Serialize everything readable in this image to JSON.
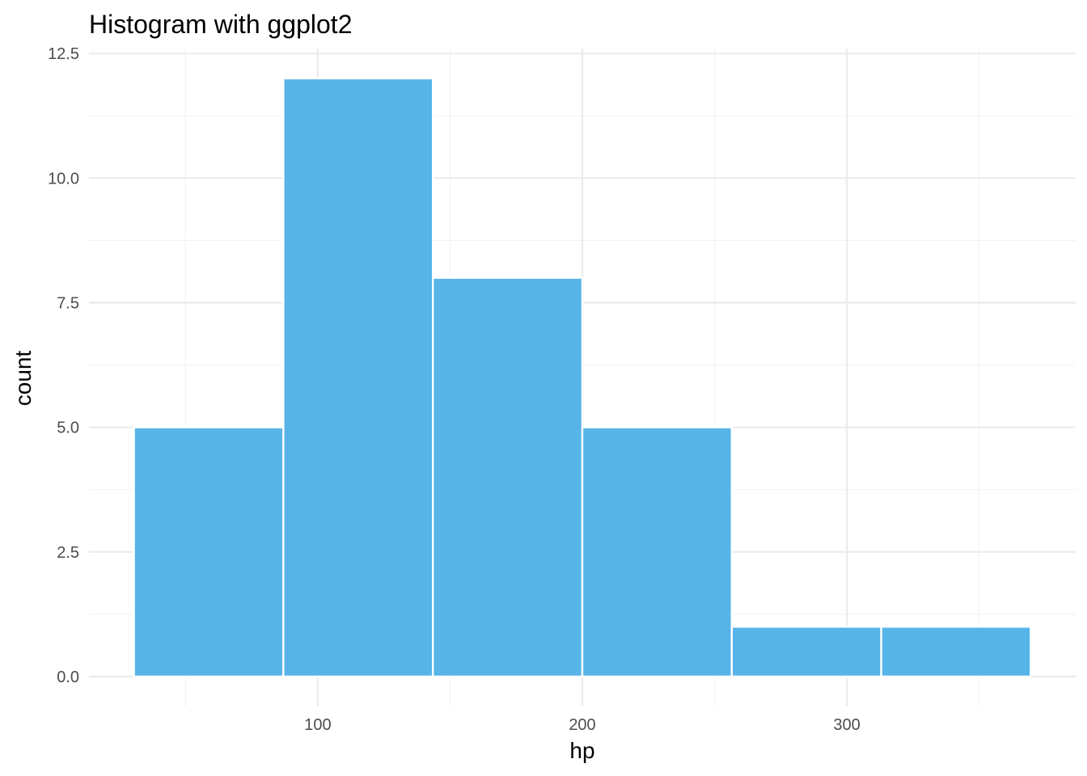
{
  "chart_data": {
    "type": "bar",
    "title": "Histogram with ggplot2",
    "xlabel": "hp",
    "ylabel": "count",
    "bins": [
      {
        "x0": 30.5,
        "x1": 87.0,
        "count": 5
      },
      {
        "x0": 87.0,
        "x1": 143.5,
        "count": 12
      },
      {
        "x0": 143.5,
        "x1": 200.0,
        "count": 8
      },
      {
        "x0": 200.0,
        "x1": 256.5,
        "count": 5
      },
      {
        "x0": 256.5,
        "x1": 313.0,
        "count": 1
      },
      {
        "x0": 313.0,
        "x1": 369.5,
        "count": 1
      }
    ],
    "xlim": [
      13.5,
      386.5
    ],
    "ylim": [
      -0.6,
      12.6
    ],
    "x_ticks": [
      {
        "value": 100,
        "label": "100"
      },
      {
        "value": 200,
        "label": "200"
      },
      {
        "value": 300,
        "label": "300"
      }
    ],
    "x_minor_ticks": [
      50,
      150,
      250,
      350
    ],
    "y_ticks": [
      {
        "value": 0,
        "label": "0.0"
      },
      {
        "value": 2.5,
        "label": "2.5"
      },
      {
        "value": 5,
        "label": "5.0"
      },
      {
        "value": 7.5,
        "label": "7.5"
      },
      {
        "value": 10,
        "label": "10.0"
      },
      {
        "value": 12.5,
        "label": "12.5"
      }
    ],
    "y_minor_ticks": [
      1.25,
      3.75,
      6.25,
      8.75,
      11.25
    ],
    "grid": true,
    "legend": "none",
    "bar_color": "#56b4e9",
    "bar_outline": "#ffffff"
  }
}
